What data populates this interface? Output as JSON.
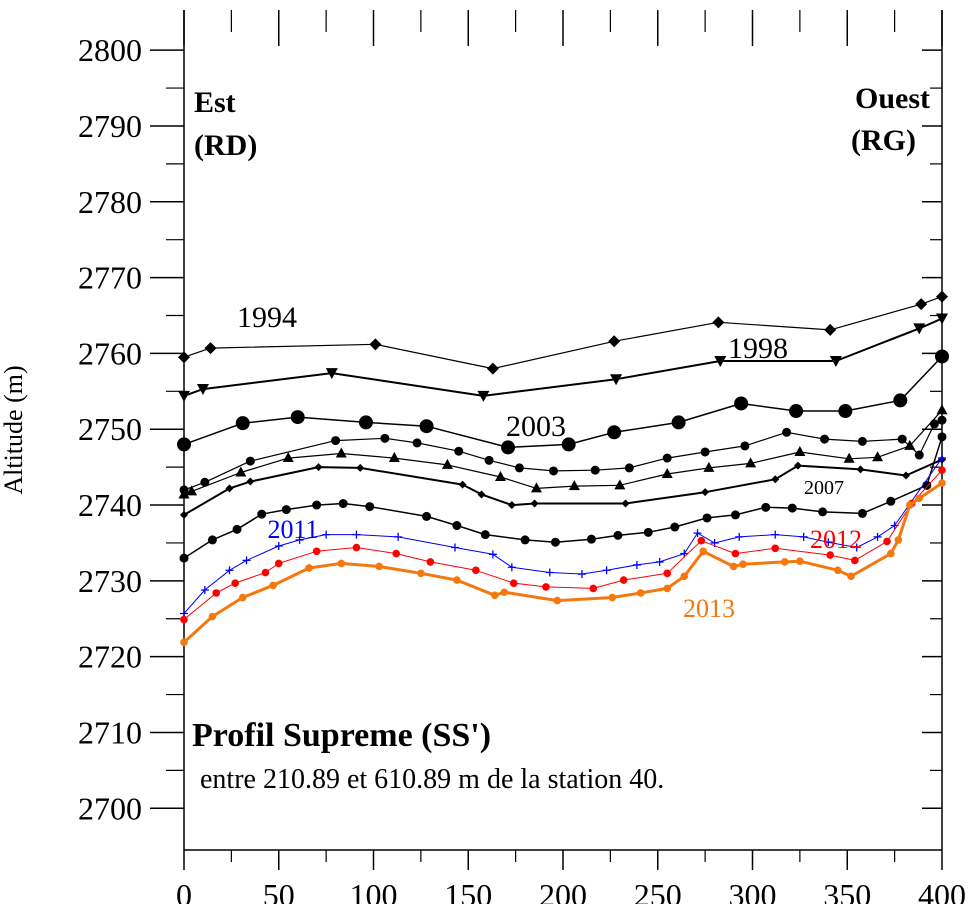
{
  "chart_data": {
    "type": "line",
    "title": "Profil Supreme (SS')",
    "subtitle": "entre 210.89 et 610.89 m de la station 40.",
    "y_label": "Altitude (m)",
    "annotations": [
      "Est",
      "(RD)",
      "Ouest",
      "(RG)"
    ],
    "xlim": [
      0,
      400
    ],
    "xticks": [
      0,
      50,
      100,
      150,
      200,
      250,
      300,
      350,
      400
    ],
    "ylim": [
      2694.5,
      2805.3
    ],
    "yticks": [
      2700,
      2710,
      2720,
      2730,
      2740,
      2750,
      2760,
      2770,
      2780,
      2790,
      2800
    ],
    "series": [
      {
        "name": "1994",
        "color": "#000000",
        "marker": "diamond",
        "x": [
          0,
          14,
          101,
          163,
          227,
          282,
          341,
          389,
          400
        ],
        "values": [
          2759.5,
          2760.7,
          2761.2,
          2758.0,
          2761.6,
          2764.1,
          2763.1,
          2766.5,
          2767.5
        ]
      },
      {
        "name": "1998",
        "color": "#000000",
        "marker": "triangle-down",
        "x": [
          0,
          10,
          78,
          158,
          228,
          283,
          344,
          388,
          400
        ],
        "values": [
          2754.4,
          2755.3,
          2757.4,
          2754.4,
          2756.6,
          2759.0,
          2759.0,
          2763.3,
          2764.6
        ]
      },
      {
        "name": "2003",
        "color": "#000000",
        "marker": "circle-large",
        "x": [
          0,
          31,
          60,
          96,
          128,
          171,
          203,
          227,
          261,
          294,
          323,
          349,
          378,
          400
        ],
        "values": [
          2748.0,
          2750.8,
          2751.6,
          2750.9,
          2750.4,
          2747.6,
          2748.0,
          2749.6,
          2750.9,
          2753.4,
          2752.4,
          2752.4,
          2753.8,
          2759.6
        ]
      },
      {
        "color": "#000000",
        "marker": "circle",
        "x": [
          0,
          11,
          35,
          80,
          106,
          123,
          145,
          161,
          177,
          195,
          217,
          235,
          255,
          275,
          296,
          318,
          338,
          358,
          379,
          388,
          396,
          400
        ],
        "values": [
          2742.0,
          2743.0,
          2745.8,
          2748.5,
          2748.8,
          2748.2,
          2747.1,
          2745.9,
          2744.9,
          2744.5,
          2744.6,
          2744.9,
          2746.2,
          2747.0,
          2747.8,
          2749.6,
          2748.7,
          2748.4,
          2748.7,
          2746.6,
          2750.7,
          2751.2
        ]
      },
      {
        "color": "#000000",
        "marker": "triangle",
        "x": [
          0,
          4,
          30,
          55,
          83,
          111,
          139,
          167,
          186,
          206,
          230,
          255,
          277,
          299,
          325,
          351,
          366,
          383,
          400
        ],
        "values": [
          2741.4,
          2741.8,
          2744.3,
          2746.2,
          2746.8,
          2746.2,
          2745.3,
          2743.7,
          2742.2,
          2742.5,
          2742.6,
          2744.1,
          2744.9,
          2745.5,
          2747.0,
          2746.1,
          2746.3,
          2747.8,
          2752.5
        ]
      },
      {
        "name": "2007",
        "color": "#000000",
        "marker": "diamond-small",
        "x": [
          0,
          24,
          35,
          71,
          93,
          147,
          157,
          173,
          185,
          233,
          275,
          312,
          324,
          357,
          381,
          400
        ],
        "values": [
          2738.7,
          2742.2,
          2743.1,
          2745.0,
          2744.9,
          2742.7,
          2741.4,
          2740.0,
          2740.2,
          2740.2,
          2741.7,
          2743.4,
          2745.2,
          2744.7,
          2743.9,
          2746.0
        ]
      },
      {
        "color": "#000000",
        "marker": "circle",
        "x": [
          0,
          15,
          28,
          41,
          54,
          70,
          84,
          98,
          128,
          144,
          159,
          180,
          196,
          215,
          229,
          245,
          259,
          276,
          291,
          307,
          321,
          337,
          358,
          373,
          392,
          400
        ],
        "values": [
          2733.0,
          2735.4,
          2736.8,
          2738.8,
          2739.4,
          2740.0,
          2740.2,
          2739.8,
          2738.5,
          2737.3,
          2736.1,
          2735.4,
          2735.1,
          2735.5,
          2736.0,
          2736.4,
          2737.1,
          2738.3,
          2738.7,
          2739.7,
          2739.6,
          2739.1,
          2738.9,
          2740.5,
          2742.6,
          2749.0
        ]
      },
      {
        "name": "2011",
        "color": "#0000ff",
        "marker": "plus",
        "x": [
          0,
          11,
          24,
          33,
          50,
          61,
          75,
          91,
          113,
          143,
          163,
          173,
          193,
          210,
          223,
          239,
          251,
          264,
          271,
          280,
          293,
          312,
          327,
          340,
          355,
          366,
          375,
          400
        ],
        "values": [
          2725.7,
          2728.8,
          2731.4,
          2732.7,
          2734.6,
          2735.4,
          2736.1,
          2736.1,
          2735.8,
          2734.4,
          2733.5,
          2731.8,
          2731.1,
          2730.9,
          2731.4,
          2732.1,
          2732.5,
          2733.6,
          2736.3,
          2735.0,
          2735.8,
          2736.1,
          2735.8,
          2735.1,
          2734.4,
          2735.8,
          2737.3,
          2746.2
        ]
      },
      {
        "name": "2012",
        "color": "#ff0000",
        "marker": "circle-small",
        "x": [
          0,
          17,
          27,
          43,
          50,
          70,
          91,
          112,
          130,
          154,
          174,
          191,
          216,
          232,
          255,
          273,
          291,
          312,
          341,
          354,
          371,
          384,
          400
        ],
        "values": [
          2724.9,
          2728.4,
          2729.7,
          2731.1,
          2732.3,
          2733.9,
          2734.4,
          2733.6,
          2732.5,
          2731.4,
          2729.7,
          2729.2,
          2729.0,
          2730.1,
          2731.0,
          2735.3,
          2733.6,
          2734.3,
          2733.4,
          2732.7,
          2735.2,
          2740.2,
          2744.6
        ]
      },
      {
        "name": "2013",
        "color": "#f5780f",
        "marker": "circle-small",
        "x": [
          0,
          15,
          31,
          47,
          66,
          83,
          103,
          125,
          144,
          164,
          169,
          197,
          226,
          241,
          255,
          264,
          274,
          290,
          295,
          317,
          325,
          345,
          352,
          373,
          377,
          383,
          388,
          400
        ],
        "values": [
          2721.9,
          2725.3,
          2727.8,
          2729.4,
          2731.7,
          2732.3,
          2731.9,
          2731.0,
          2730.1,
          2728.1,
          2728.5,
          2727.4,
          2727.8,
          2728.4,
          2729.0,
          2730.6,
          2733.9,
          2731.9,
          2732.2,
          2732.5,
          2732.6,
          2731.4,
          2730.6,
          2733.6,
          2735.4,
          2740.0,
          2740.9,
          2742.9
        ]
      }
    ]
  }
}
